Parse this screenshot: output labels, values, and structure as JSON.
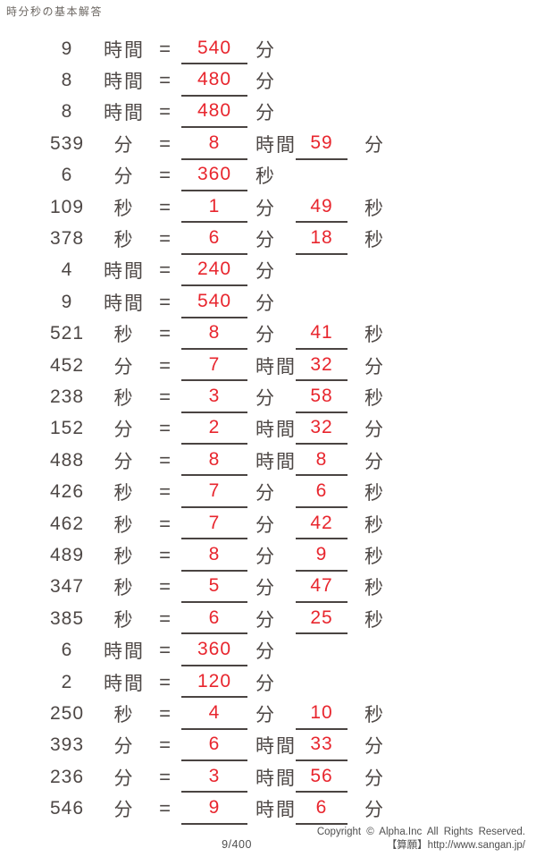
{
  "page": {
    "title": "時分秒の基本解答",
    "equals": "=",
    "page_number": "9/400",
    "copyright_line1": "Copyright ©  Alpha.Inc  All  Rights  Reserved.",
    "copyright_line2": "【算願】http://www.sangan.jp/"
  },
  "colors": {
    "answer_red": "#e8262e",
    "text_dark": "#4e4846",
    "underline": "#4a4442"
  },
  "problems": [
    {
      "value": "9",
      "value_unit": "時間",
      "answer1": "540",
      "answer1_unit": "分",
      "answer2": null,
      "answer2_unit": null
    },
    {
      "value": "8",
      "value_unit": "時間",
      "answer1": "480",
      "answer1_unit": "分",
      "answer2": null,
      "answer2_unit": null
    },
    {
      "value": "8",
      "value_unit": "時間",
      "answer1": "480",
      "answer1_unit": "分",
      "answer2": null,
      "answer2_unit": null
    },
    {
      "value": "539",
      "value_unit": "分",
      "answer1": "8",
      "answer1_unit": "時間",
      "answer2": "59",
      "answer2_unit": "分"
    },
    {
      "value": "6",
      "value_unit": "分",
      "answer1": "360",
      "answer1_unit": "秒",
      "answer2": null,
      "answer2_unit": null
    },
    {
      "value": "109",
      "value_unit": "秒",
      "answer1": "1",
      "answer1_unit": "分",
      "answer2": "49",
      "answer2_unit": "秒"
    },
    {
      "value": "378",
      "value_unit": "秒",
      "answer1": "6",
      "answer1_unit": "分",
      "answer2": "18",
      "answer2_unit": "秒"
    },
    {
      "value": "4",
      "value_unit": "時間",
      "answer1": "240",
      "answer1_unit": "分",
      "answer2": null,
      "answer2_unit": null
    },
    {
      "value": "9",
      "value_unit": "時間",
      "answer1": "540",
      "answer1_unit": "分",
      "answer2": null,
      "answer2_unit": null
    },
    {
      "value": "521",
      "value_unit": "秒",
      "answer1": "8",
      "answer1_unit": "分",
      "answer2": "41",
      "answer2_unit": "秒"
    },
    {
      "value": "452",
      "value_unit": "分",
      "answer1": "7",
      "answer1_unit": "時間",
      "answer2": "32",
      "answer2_unit": "分"
    },
    {
      "value": "238",
      "value_unit": "秒",
      "answer1": "3",
      "answer1_unit": "分",
      "answer2": "58",
      "answer2_unit": "秒"
    },
    {
      "value": "152",
      "value_unit": "分",
      "answer1": "2",
      "answer1_unit": "時間",
      "answer2": "32",
      "answer2_unit": "分"
    },
    {
      "value": "488",
      "value_unit": "分",
      "answer1": "8",
      "answer1_unit": "時間",
      "answer2": "8",
      "answer2_unit": "分"
    },
    {
      "value": "426",
      "value_unit": "秒",
      "answer1": "7",
      "answer1_unit": "分",
      "answer2": "6",
      "answer2_unit": "秒"
    },
    {
      "value": "462",
      "value_unit": "秒",
      "answer1": "7",
      "answer1_unit": "分",
      "answer2": "42",
      "answer2_unit": "秒"
    },
    {
      "value": "489",
      "value_unit": "秒",
      "answer1": "8",
      "answer1_unit": "分",
      "answer2": "9",
      "answer2_unit": "秒"
    },
    {
      "value": "347",
      "value_unit": "秒",
      "answer1": "5",
      "answer1_unit": "分",
      "answer2": "47",
      "answer2_unit": "秒"
    },
    {
      "value": "385",
      "value_unit": "秒",
      "answer1": "6",
      "answer1_unit": "分",
      "answer2": "25",
      "answer2_unit": "秒"
    },
    {
      "value": "6",
      "value_unit": "時間",
      "answer1": "360",
      "answer1_unit": "分",
      "answer2": null,
      "answer2_unit": null
    },
    {
      "value": "2",
      "value_unit": "時間",
      "answer1": "120",
      "answer1_unit": "分",
      "answer2": null,
      "answer2_unit": null
    },
    {
      "value": "250",
      "value_unit": "秒",
      "answer1": "4",
      "answer1_unit": "分",
      "answer2": "10",
      "answer2_unit": "秒"
    },
    {
      "value": "393",
      "value_unit": "分",
      "answer1": "6",
      "answer1_unit": "時間",
      "answer2": "33",
      "answer2_unit": "分"
    },
    {
      "value": "236",
      "value_unit": "分",
      "answer1": "3",
      "answer1_unit": "時間",
      "answer2": "56",
      "answer2_unit": "分"
    },
    {
      "value": "546",
      "value_unit": "分",
      "answer1": "9",
      "answer1_unit": "時間",
      "answer2": "6",
      "answer2_unit": "分"
    }
  ]
}
